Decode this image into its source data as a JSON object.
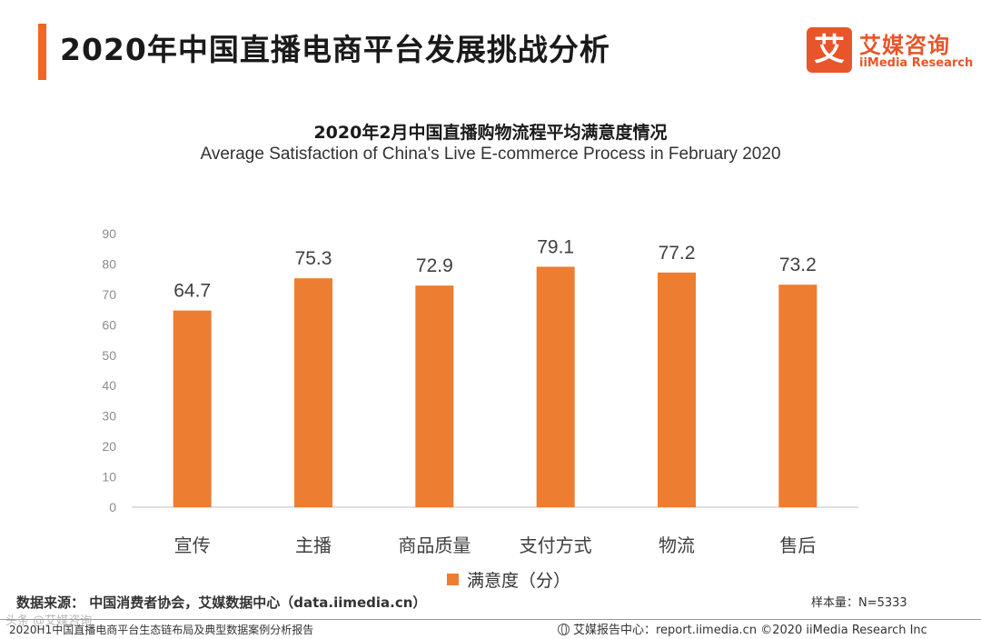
{
  "colors": {
    "accent": "#f26522",
    "bar": "#ed7d31",
    "axis": "#bfbfbf",
    "logo": "#e8552a"
  },
  "header": {
    "title": "2020年中国直播电商平台发展挑战分析",
    "logo_mark": "艾",
    "logo_cn": "艾媒咨询",
    "logo_en": "iiMedia Research"
  },
  "chart_data": {
    "type": "bar",
    "title": "2020年2月中国直播购物流程平均满意度情况",
    "subtitle": "Average Satisfaction of China's Live E-commerce Process in February 2020",
    "categories": [
      "宣传",
      "主播",
      "商品质量",
      "支付方式",
      "物流",
      "售后"
    ],
    "series": [
      {
        "name": "满意度（分）",
        "values": [
          64.7,
          75.3,
          72.9,
          79.1,
          77.2,
          73.2
        ]
      }
    ],
    "value_labels": [
      "64.7",
      "75.3",
      "72.9",
      "79.1",
      "77.2",
      "73.2"
    ],
    "ylim": [
      0,
      90
    ],
    "yticks": [
      0,
      10,
      20,
      30,
      40,
      50,
      60,
      70,
      80,
      90
    ],
    "ytick_labels": [
      "0",
      "10",
      "20",
      "30",
      "40",
      "50",
      "60",
      "70",
      "80",
      "90"
    ],
    "xlabel": "",
    "ylabel": "",
    "legend": "bottom-center",
    "grid": false
  },
  "legend": {
    "label": "满意度（分）"
  },
  "footer": {
    "source": "数据来源： 中国消费者协会，艾媒数据中心（data.iimedia.cn）",
    "sample": "样本量：N=5333",
    "watermark": "头条 @艾媒咨询",
    "report": "2020H1中国直播电商平台生态链布局及典型数据案例分析报告",
    "copyright": "艾媒报告中心：report.iimedia.cn  ©2020  iiMedia Research  Inc"
  }
}
